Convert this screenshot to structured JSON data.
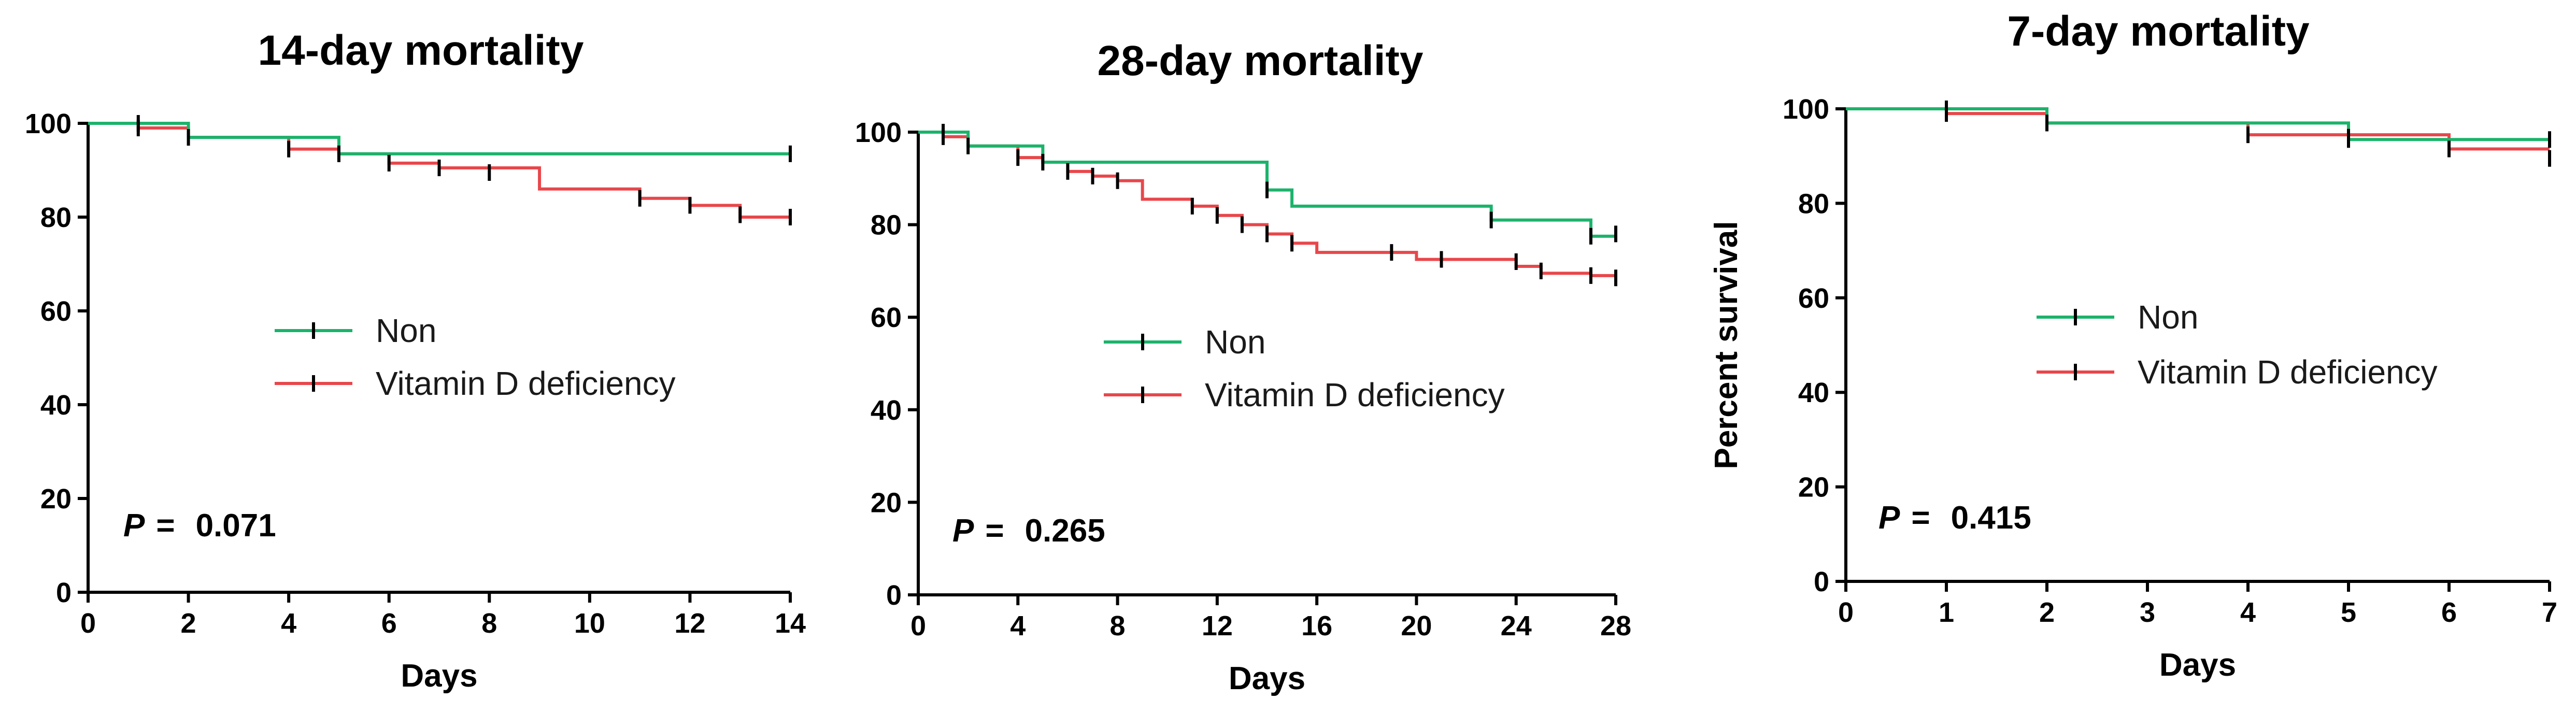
{
  "colors": {
    "non": "#1bb36b",
    "vitd": "#e8474b",
    "axis": "#000000",
    "tick_mark": "#000000"
  },
  "chart_data": [
    {
      "type": "line",
      "subtype": "kaplan-meier",
      "title": "14-day mortality",
      "xlabel": "Days",
      "ylabel": "",
      "xlim": [
        0,
        14
      ],
      "ylim": [
        0,
        100
      ],
      "xticks": [
        "0",
        "2",
        "4",
        "6",
        "8",
        "10",
        "12",
        "14"
      ],
      "yticks": [
        "0",
        "20",
        "40",
        "60",
        "80",
        "100"
      ],
      "legend": {
        "position": "center",
        "entries": [
          "Non",
          "Vitamin D deficiency"
        ]
      },
      "p_label": "P",
      "p_eq": "=",
      "p_value": "0.071",
      "series": [
        {
          "name": "Non",
          "color_key": "non",
          "steps": [
            [
              0,
              100
            ],
            [
              1,
              100
            ],
            [
              2,
              97
            ],
            [
              5,
              97
            ],
            [
              5,
              93.5
            ],
            [
              14,
              93.5
            ]
          ],
          "censors": [
            [
              1,
              100
            ],
            [
              14,
              93.5
            ]
          ]
        },
        {
          "name": "Vitamin D deficiency",
          "color_key": "vitd",
          "steps": [
            [
              0,
              100
            ],
            [
              1,
              99
            ],
            [
              2,
              97
            ],
            [
              4,
              97
            ],
            [
              4,
              94.5
            ],
            [
              5,
              94.5
            ],
            [
              5,
              93.5
            ],
            [
              6,
              93.5
            ],
            [
              6,
              91.5
            ],
            [
              7,
              91.5
            ],
            [
              7,
              90.5
            ],
            [
              8,
              90.5
            ],
            [
              9,
              90
            ],
            [
              9,
              86
            ],
            [
              11,
              86
            ],
            [
              11,
              84
            ],
            [
              12,
              84
            ],
            [
              12,
              82.5
            ],
            [
              13,
              82.5
            ],
            [
              13,
              80
            ],
            [
              14,
              80
            ]
          ],
          "censors": [
            [
              1,
              99
            ],
            [
              2,
              97
            ],
            [
              4,
              94.5
            ],
            [
              5,
              93.5
            ],
            [
              6,
              91.5
            ],
            [
              7,
              90.5
            ],
            [
              8,
              89.5
            ],
            [
              11,
              84
            ],
            [
              12,
              82.5
            ],
            [
              13,
              80.5
            ],
            [
              14,
              80
            ]
          ]
        }
      ]
    },
    {
      "type": "line",
      "subtype": "kaplan-meier",
      "title": "28-day mortality",
      "xlabel": "Days",
      "ylabel": "",
      "xlim": [
        0,
        28
      ],
      "ylim": [
        0,
        100
      ],
      "xticks": [
        "0",
        "4",
        "8",
        "12",
        "16",
        "20",
        "24",
        "28"
      ],
      "yticks": [
        "0",
        "20",
        "40",
        "60",
        "80",
        "100"
      ],
      "legend": {
        "position": "center-right",
        "entries": [
          "Non",
          "Vitamin D deficiency"
        ]
      },
      "p_label": "P",
      "p_eq": "=",
      "p_value": "0.265",
      "series": [
        {
          "name": "Non",
          "color_key": "non",
          "steps": [
            [
              0,
              100
            ],
            [
              1,
              100
            ],
            [
              2,
              97
            ],
            [
              5,
              97
            ],
            [
              5,
              93.5
            ],
            [
              14,
              93.5
            ],
            [
              14,
              87.5
            ],
            [
              15,
              87.5
            ],
            [
              15,
              84
            ],
            [
              23,
              84
            ],
            [
              23,
              81
            ],
            [
              27,
              81
            ],
            [
              27,
              77.5
            ],
            [
              28,
              77.5
            ]
          ],
          "censors": [
            [
              1,
              100
            ],
            [
              14,
              87.5
            ],
            [
              23,
              81
            ],
            [
              27,
              77.5
            ],
            [
              28,
              78
            ]
          ]
        },
        {
          "name": "Vitamin D deficiency",
          "color_key": "vitd",
          "steps": [
            [
              0,
              100
            ],
            [
              1,
              99
            ],
            [
              2,
              97
            ],
            [
              4,
              97
            ],
            [
              4,
              94.5
            ],
            [
              5,
              94.5
            ],
            [
              5,
              93.5
            ],
            [
              6,
              93.5
            ],
            [
              6,
              91.5
            ],
            [
              7,
              91.5
            ],
            [
              7,
              90.5
            ],
            [
              8,
              90.5
            ],
            [
              8,
              89.5
            ],
            [
              9,
              89.5
            ],
            [
              9,
              85.5
            ],
            [
              11,
              85.5
            ],
            [
              11,
              84
            ],
            [
              12,
              84
            ],
            [
              12,
              82
            ],
            [
              13,
              82
            ],
            [
              13,
              80
            ],
            [
              14,
              80
            ],
            [
              14,
              78
            ],
            [
              15,
              78
            ],
            [
              15,
              76
            ],
            [
              16,
              76
            ],
            [
              16,
              74
            ],
            [
              20,
              74
            ],
            [
              20,
              72.5
            ],
            [
              24,
              72.5
            ],
            [
              24,
              71
            ],
            [
              25,
              71
            ],
            [
              25,
              69.5
            ],
            [
              27,
              69.5
            ],
            [
              27,
              69
            ],
            [
              28,
              69
            ],
            [
              28,
              68.5
            ]
          ],
          "censors": [
            [
              1,
              99
            ],
            [
              2,
              97
            ],
            [
              4,
              94.5
            ],
            [
              5,
              93.5
            ],
            [
              6,
              91.5
            ],
            [
              7,
              90.5
            ],
            [
              8,
              89.5
            ],
            [
              11,
              84
            ],
            [
              12,
              82
            ],
            [
              13,
              80
            ],
            [
              14,
              78
            ],
            [
              15,
              76
            ],
            [
              19,
              74
            ],
            [
              21,
              72.5
            ],
            [
              24,
              72
            ],
            [
              25,
              70
            ],
            [
              27,
              69
            ],
            [
              28,
              68.5
            ]
          ]
        }
      ]
    },
    {
      "type": "line",
      "subtype": "kaplan-meier",
      "title": "7-day mortality",
      "xlabel": "Days",
      "ylabel": "Percent survival",
      "xlim": [
        0,
        7
      ],
      "ylim": [
        0,
        100
      ],
      "xticks": [
        "0",
        "1",
        "2",
        "3",
        "4",
        "5",
        "6",
        "7"
      ],
      "yticks": [
        "0",
        "20",
        "40",
        "60",
        "80",
        "100"
      ],
      "legend": {
        "position": "center-right",
        "entries": [
          "Non",
          "Vitamin D deficiency"
        ]
      },
      "p_label": "P",
      "p_eq": "=",
      "p_value": "0.415",
      "series": [
        {
          "name": "Non",
          "color_key": "non",
          "steps": [
            [
              0,
              100
            ],
            [
              1,
              100
            ],
            [
              2,
              97
            ],
            [
              5,
              97
            ],
            [
              5,
              93.5
            ],
            [
              7,
              93.5
            ]
          ],
          "censors": [
            [
              1,
              100
            ],
            [
              2,
              97
            ],
            [
              5,
              93.5
            ],
            [
              7,
              93.5
            ]
          ]
        },
        {
          "name": "Vitamin D deficiency",
          "color_key": "vitd",
          "steps": [
            [
              0,
              100
            ],
            [
              1,
              99
            ],
            [
              2,
              97
            ],
            [
              4,
              97
            ],
            [
              4,
              94.5
            ],
            [
              5,
              94.5
            ],
            [
              6,
              94.5
            ],
            [
              6,
              91.5
            ],
            [
              7,
              91.5
            ]
          ],
          "censors": [
            [
              1,
              99
            ],
            [
              2,
              97
            ],
            [
              4,
              94.5
            ],
            [
              5,
              94
            ],
            [
              6,
              91.5
            ],
            [
              7,
              89.5
            ]
          ]
        }
      ]
    }
  ]
}
